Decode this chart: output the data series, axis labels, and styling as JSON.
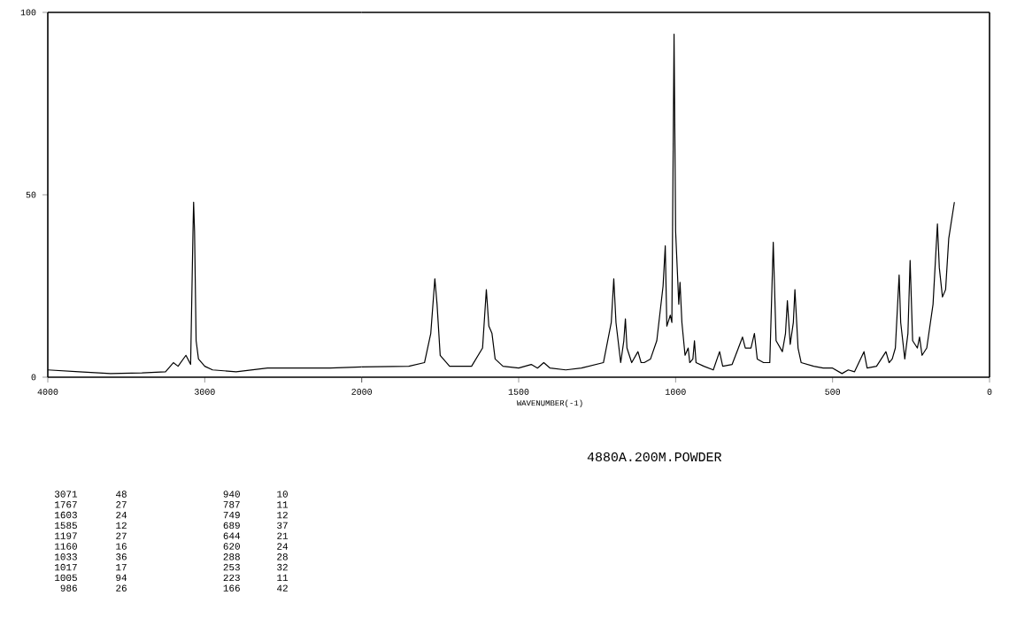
{
  "chart_data": [
    {
      "type": "line",
      "color": "#000000",
      "x": [
        4000,
        3800,
        3600,
        3400,
        3250,
        3200,
        3170,
        3120,
        3090,
        3075,
        3071,
        3065,
        3055,
        3040,
        3000,
        2950,
        2800,
        2600,
        2400,
        2200,
        2000
      ],
      "values": [
        2,
        1.5,
        1,
        1.2,
        1.5,
        4,
        3,
        6,
        3.5,
        40,
        48,
        40,
        10,
        5,
        3,
        2,
        1.5,
        2.5,
        2.5,
        2.5,
        2.8
      ],
      "xlim": [
        4000,
        2000
      ],
      "ylim": [
        0,
        100
      ],
      "xticks": [
        4000,
        3000,
        2000
      ],
      "yticks": [
        0,
        50,
        100
      ],
      "annotations": [
        "4880A.200M.POWDER",
        "3071",
        "48",
        "1767",
        "27",
        "1603",
        "24",
        "1585",
        "12",
        "1197",
        "27",
        "1160",
        "16",
        "1033",
        "36",
        "1017",
        "17",
        "1005",
        "94",
        "986",
        "26",
        "940",
        "10",
        "787",
        "11",
        "749",
        "12",
        "689",
        "37",
        "644",
        "21",
        "620",
        "24",
        "288",
        "28",
        "253",
        "32",
        "223",
        "11",
        "166",
        "42"
      ]
    },
    {
      "type": "line",
      "xlabel": "WAVENUMBER(-1)",
      "color": "#000000",
      "x": [
        2000,
        1850,
        1800,
        1780,
        1767,
        1760,
        1750,
        1720,
        1650,
        1615,
        1603,
        1595,
        1585,
        1575,
        1550,
        1500,
        1460,
        1440,
        1420,
        1400,
        1350,
        1300,
        1230,
        1205,
        1197,
        1190,
        1175,
        1165,
        1160,
        1155,
        1140,
        1120,
        1110,
        1100,
        1080,
        1060,
        1040,
        1033,
        1028,
        1017,
        1012,
        1005,
        1000,
        990,
        986,
        980,
        970,
        960,
        955,
        945,
        940,
        935,
        910,
        880,
        860,
        850,
        820,
        800,
        787,
        778,
        760,
        749,
        740,
        720,
        700,
        689,
        680,
        660,
        650,
        644,
        635,
        625,
        620,
        610,
        600,
        560,
        530,
        500,
        470,
        450,
        430,
        400,
        390,
        360,
        330,
        320,
        310,
        300,
        288,
        283,
        270,
        260,
        253,
        245,
        230,
        223,
        215,
        200,
        180,
        166,
        160,
        150,
        140,
        130,
        112
      ],
      "values": [
        2.8,
        3,
        4,
        12,
        27,
        20,
        6,
        3,
        3,
        8,
        24,
        14,
        12,
        5,
        3,
        2.5,
        3.5,
        2.5,
        4,
        2.5,
        2,
        2.5,
        4,
        15,
        27,
        15,
        4,
        10,
        16,
        8,
        4,
        7,
        4,
        4,
        5,
        10,
        25,
        36,
        14,
        17,
        15,
        94,
        40,
        20,
        26,
        15,
        6,
        8,
        4,
        5,
        10,
        4,
        3,
        2,
        7,
        3,
        3.5,
        8,
        11,
        8,
        8,
        12,
        5,
        4,
        4,
        37,
        10,
        7,
        12,
        21,
        9,
        15,
        24,
        8,
        4,
        3,
        2.5,
        2.5,
        1,
        2,
        1.5,
        7,
        2.5,
        3,
        7,
        4,
        5,
        8,
        28,
        15,
        5,
        12,
        32,
        10,
        8,
        11,
        6,
        8,
        20,
        42,
        30,
        22,
        24,
        38,
        48
      ],
      "xlim": [
        2000,
        0
      ],
      "ylim": [
        0,
        100
      ],
      "xticks": [
        {
          "value": 2000,
          "label": null
        },
        1500,
        1000,
        500,
        0
      ],
      "yticks": [
        0,
        50,
        100
      ],
      "tick_labels": "x"
    }
  ]
}
